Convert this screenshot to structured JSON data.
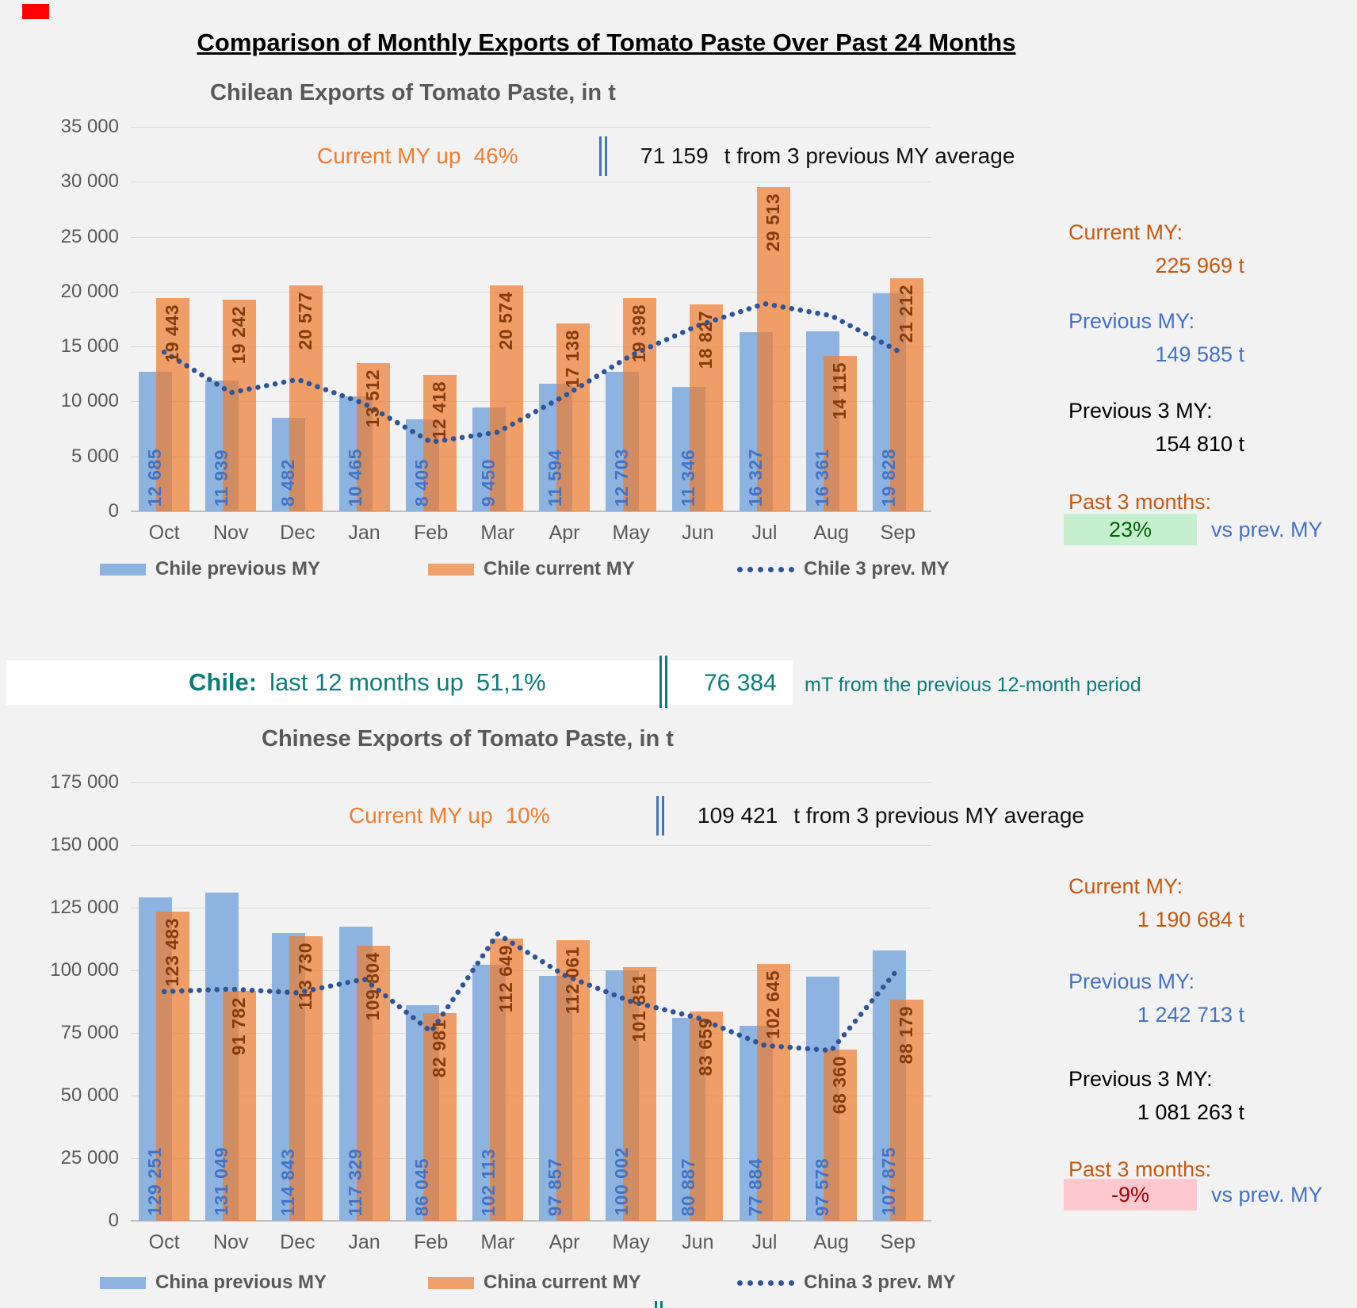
{
  "page": {
    "background": "#F2F2F2",
    "accent_orange": "#ED7D31",
    "accent_blue": "#4472C4",
    "accent_teal": "#0D7C7A",
    "good_box": "#C6EFCE",
    "bad_box": "#FFC7CE"
  },
  "title": "Comparison of Monthly Exports of Tomato Paste Over Past 24 Months",
  "chile": {
    "annotation": {
      "label": "Current MY up",
      "pct": "46%",
      "value": "71 159",
      "suffix": "t from 3 previous MY average"
    },
    "panel": {
      "current_label": "Current MY:",
      "current_value": "225 969 t",
      "previous_label": "Previous MY:",
      "previous_value": "149 585 t",
      "prev3_label": "Previous 3 MY:",
      "prev3_value": "154 810 t",
      "past3_label": "Past 3 months:",
      "past3_pct": "23%",
      "vs_label": "vs prev. MY"
    },
    "banner": {
      "intro": "Chile:",
      "text": "last 12 months up",
      "pct": "51,1%",
      "value": "76 384",
      "suffix": "mT from the previous 12-month period"
    }
  },
  "china": {
    "annotation": {
      "label": "Current MY up",
      "pct": "10%",
      "value": "109 421",
      "suffix": "t from 3 previous MY average"
    },
    "panel": {
      "current_label": "Current MY:",
      "current_value": "1 190 684 t",
      "previous_label": "Previous MY:",
      "previous_value": "1 242 713 t",
      "prev3_label": "Previous 3 MY:",
      "prev3_value": "1 081 263 t",
      "past3_label": "Past 3 months:",
      "past3_pct": "-9%",
      "vs_label": "vs prev. MY"
    }
  },
  "chart_data": [
    {
      "type": "bar",
      "title": "Chilean Exports of Tomato Paste, in t",
      "categories": [
        "Oct",
        "Nov",
        "Dec",
        "Jan",
        "Feb",
        "Mar",
        "Apr",
        "May",
        "Jun",
        "Jul",
        "Aug",
        "Sep"
      ],
      "series": [
        {
          "name": "Chile previous MY",
          "kind": "bar-prev",
          "values": [
            12685,
            11939,
            8482,
            10465,
            8405,
            9450,
            11594,
            12703,
            11346,
            16327,
            16361,
            19828
          ]
        },
        {
          "name": "Chile current MY",
          "kind": "bar-curr",
          "values": [
            19443,
            19242,
            20577,
            13512,
            12418,
            20574,
            17138,
            19398,
            18827,
            29513,
            14115,
            21212
          ]
        },
        {
          "name": "Chile 3 prev. MY",
          "kind": "dotted-line",
          "values": [
            14500,
            10800,
            12000,
            9800,
            6300,
            7200,
            10500,
            14200,
            16900,
            18900,
            17800,
            14600
          ]
        }
      ],
      "ylim": [
        0,
        35000
      ],
      "ytick": 5000,
      "grid": true,
      "legend_position": "bottom"
    },
    {
      "type": "bar",
      "title": "Chinese Exports of Tomato Paste, in t",
      "categories": [
        "Oct",
        "Nov",
        "Dec",
        "Jan",
        "Feb",
        "Mar",
        "Apr",
        "May",
        "Jun",
        "Jul",
        "Aug",
        "Sep"
      ],
      "series": [
        {
          "name": "China previous MY",
          "kind": "bar-prev",
          "values": [
            129251,
            131049,
            114843,
            117329,
            86045,
            102113,
            97857,
            100002,
            80887,
            77884,
            97578,
            107875
          ]
        },
        {
          "name": "China current MY",
          "kind": "bar-curr",
          "values": [
            123483,
            91782,
            113730,
            109804,
            82981,
            112649,
            112061,
            101351,
            83659,
            102645,
            68360,
            88179
          ]
        },
        {
          "name": "China 3 prev. MY",
          "kind": "dotted-line",
          "values": [
            91500,
            92500,
            91000,
            96500,
            75500,
            114500,
            98000,
            87500,
            81000,
            70000,
            68000,
            100500
          ]
        }
      ],
      "ylim": [
        0,
        175000
      ],
      "ytick": 25000,
      "grid": true,
      "legend_position": "bottom"
    }
  ]
}
